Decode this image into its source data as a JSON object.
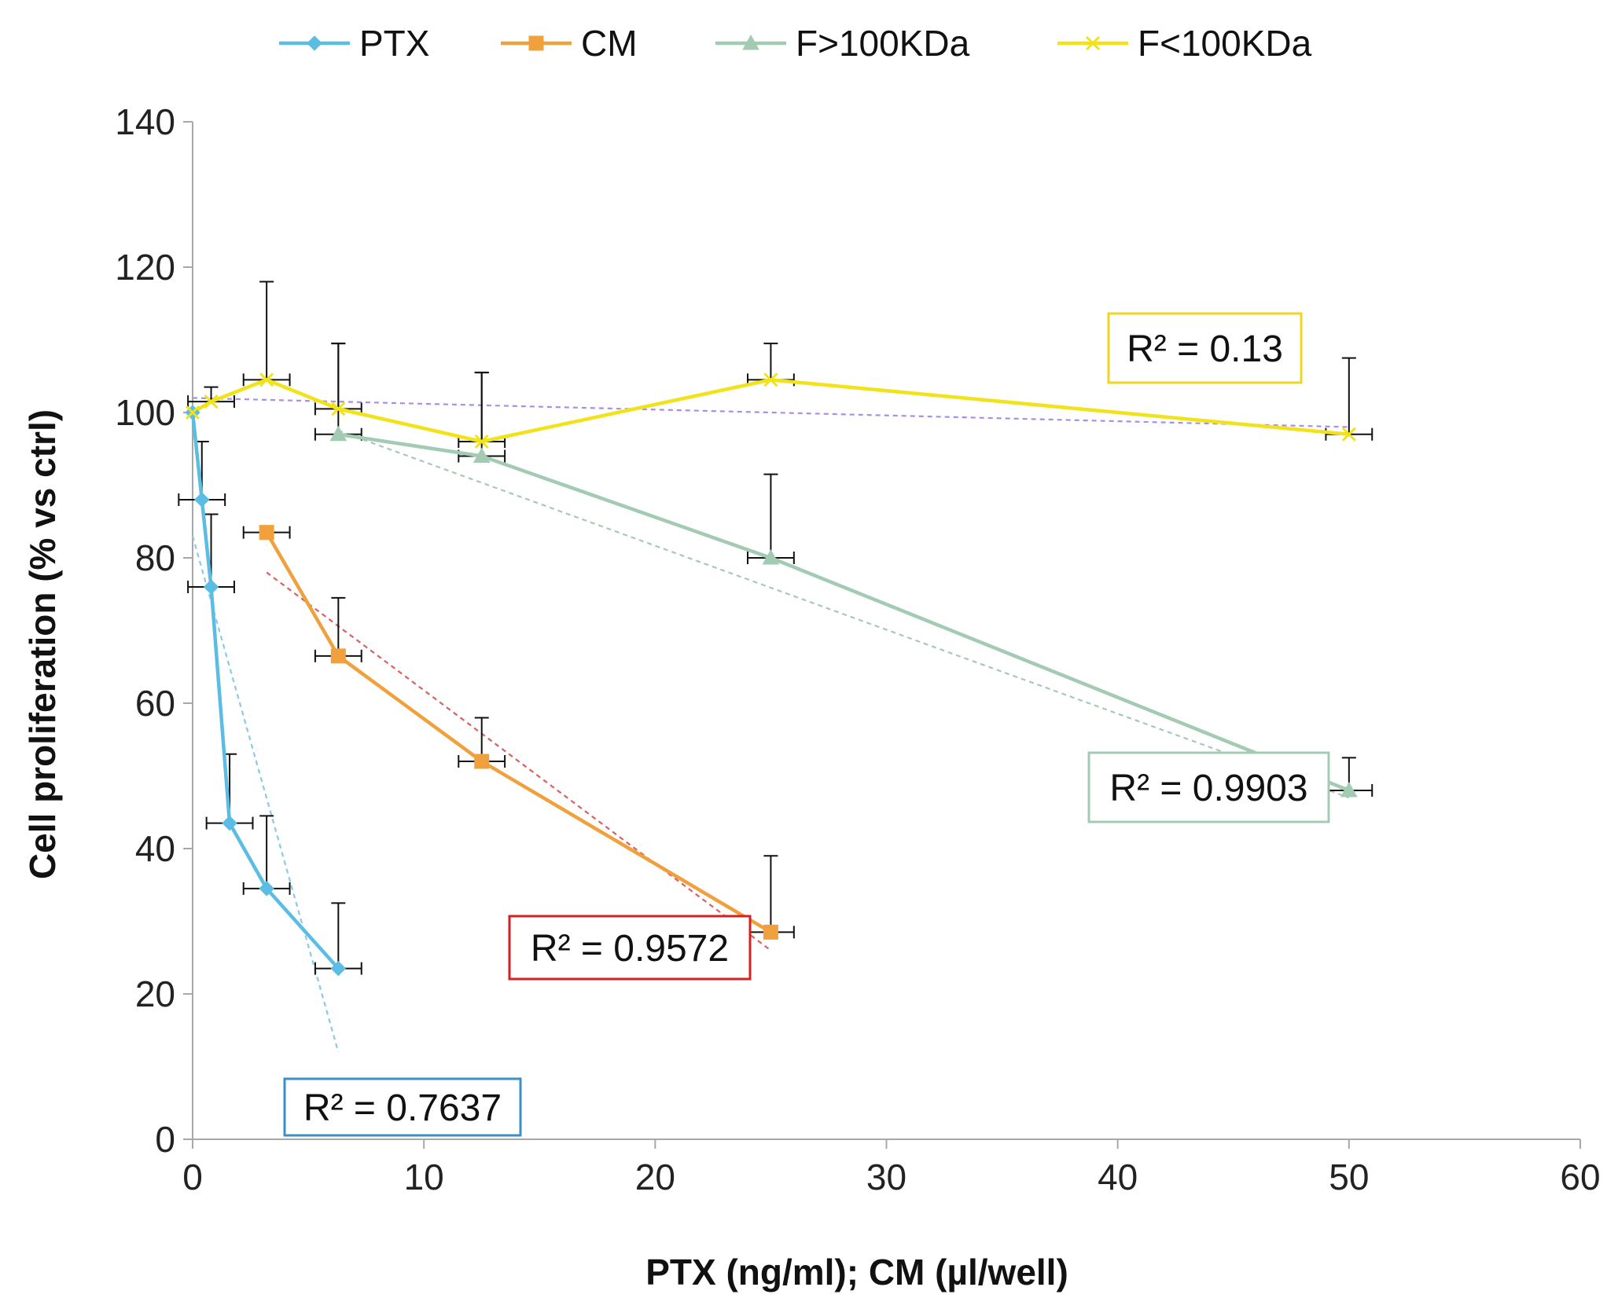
{
  "chart_data": {
    "type": "line",
    "title": "",
    "xlabel": "PTX (ng/ml); CM (µl/well)",
    "ylabel": "Cell proliferation (% vs ctrl)",
    "xlim": [
      0,
      60
    ],
    "ylim": [
      0,
      140
    ],
    "xticks": [
      "0",
      "10",
      "20",
      "30",
      "40",
      "50",
      "60"
    ],
    "yticks": [
      "0",
      "20",
      "40",
      "60",
      "80",
      "100",
      "120",
      "140"
    ],
    "grid": false,
    "legend_position": "top",
    "series": [
      {
        "name": "PTX",
        "color": "#5bbce4",
        "marker": "diamond",
        "x": [
          0,
          0.4,
          0.8,
          1.6,
          3.2,
          6.3
        ],
        "y": [
          100,
          88,
          76,
          43.5,
          34.5,
          23.5
        ],
        "err_y_plus": [
          0,
          8,
          10,
          9.5,
          10,
          9
        ],
        "err_x": [
          0,
          1,
          1,
          1,
          1,
          1
        ],
        "trendline": {
          "x1": 0,
          "y1": 83,
          "x2": 6.3,
          "y2": 12,
          "color": "#8cc8e8"
        },
        "r2_label": "R² = 0.7637",
        "r2_border": "#3d8fc8"
      },
      {
        "name": "CM",
        "color": "#f0a03c",
        "marker": "square",
        "x": [
          3.2,
          6.3,
          12.5,
          25
        ],
        "y": [
          83.5,
          66.5,
          52,
          28.5
        ],
        "err_y_plus": [
          0,
          8,
          6,
          10.5
        ],
        "err_x": [
          1,
          1,
          1,
          1
        ],
        "trendline": {
          "x1": 3.2,
          "y1": 78,
          "x2": 25,
          "y2": 26,
          "color": "#d86060"
        },
        "r2_label": "R² = 0.9572",
        "r2_border": "#d42020"
      },
      {
        "name": "F>100KDa",
        "color": "#a3cbb4",
        "marker": "triangle",
        "x": [
          6.3,
          12.5,
          25,
          50
        ],
        "y": [
          97,
          94,
          80,
          48
        ],
        "err_y_plus": [
          12.5,
          11.5,
          11.5,
          4.5
        ],
        "err_x": [
          1,
          1,
          1,
          1
        ],
        "trendline": {
          "x1": 6.3,
          "y1": 97.5,
          "x2": 50,
          "y2": 47,
          "color": "#a3cbb4"
        },
        "r2_label": "R² = 0.9903",
        "r2_border": "#a3cbb4"
      },
      {
        "name": "F<100KDa",
        "color": "#f2e21a",
        "marker": "x",
        "x": [
          0,
          0.8,
          3.2,
          6.3,
          12.5,
          25,
          50
        ],
        "y": [
          100,
          101.5,
          104.5,
          100.5,
          96,
          104.5,
          97
        ],
        "err_y_plus": [
          0,
          2,
          13.5,
          9,
          9.5,
          5,
          10.5
        ],
        "err_x": [
          0,
          1,
          1,
          1,
          1,
          1,
          1
        ],
        "trendline": {
          "x1": 0,
          "y1": 102,
          "x2": 50,
          "y2": 98,
          "color": "#a98ee6"
        },
        "r2_label": "R² = 0.13",
        "r2_border": "#efd520"
      }
    ]
  }
}
